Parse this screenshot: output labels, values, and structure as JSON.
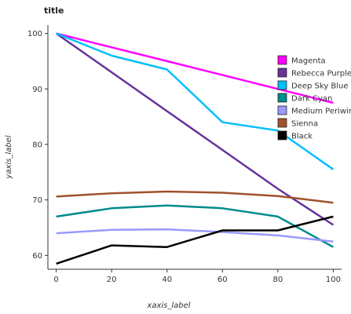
{
  "chart_data": {
    "type": "line",
    "title": "title",
    "xlabel": "xaxis_label",
    "ylabel": "yaxis_label",
    "x": [
      0,
      20,
      40,
      60,
      80,
      100
    ],
    "xticks": [
      0,
      20,
      40,
      60,
      80,
      100
    ],
    "yticks": [
      60,
      70,
      80,
      90,
      100
    ],
    "xlim": [
      -3,
      103
    ],
    "ylim": [
      57.5,
      101.5
    ],
    "grid": false,
    "legend_position": "right",
    "series": [
      {
        "name": "Magenta",
        "color": "#ff00ff",
        "values": [
          100,
          97.5,
          95,
          92.5,
          90,
          87.5
        ]
      },
      {
        "name": "Rebecca Purple",
        "color": "#663399",
        "values": [
          100,
          93,
          86,
          79,
          72,
          65.5
        ]
      },
      {
        "name": "Deep Sky Blue",
        "color": "#00bfff",
        "values": [
          100,
          96,
          93.5,
          84,
          82.5,
          75.5
        ]
      },
      {
        "name": "Dark Cyan",
        "color": "#008b8b",
        "values": [
          67,
          68.5,
          69,
          68.5,
          67,
          61.5
        ]
      },
      {
        "name": "Medium Periwinkle",
        "color": "#9999ff",
        "values": [
          64,
          64.6,
          64.7,
          64.2,
          63.6,
          62.5
        ]
      },
      {
        "name": "Sienna",
        "color": "#a0522d",
        "values": [
          70.6,
          71.2,
          71.5,
          71.3,
          70.7,
          69.5
        ]
      },
      {
        "name": "Black",
        "color": "#000000",
        "values": [
          58.5,
          61.8,
          61.5,
          64.5,
          64.5,
          67
        ]
      }
    ]
  }
}
